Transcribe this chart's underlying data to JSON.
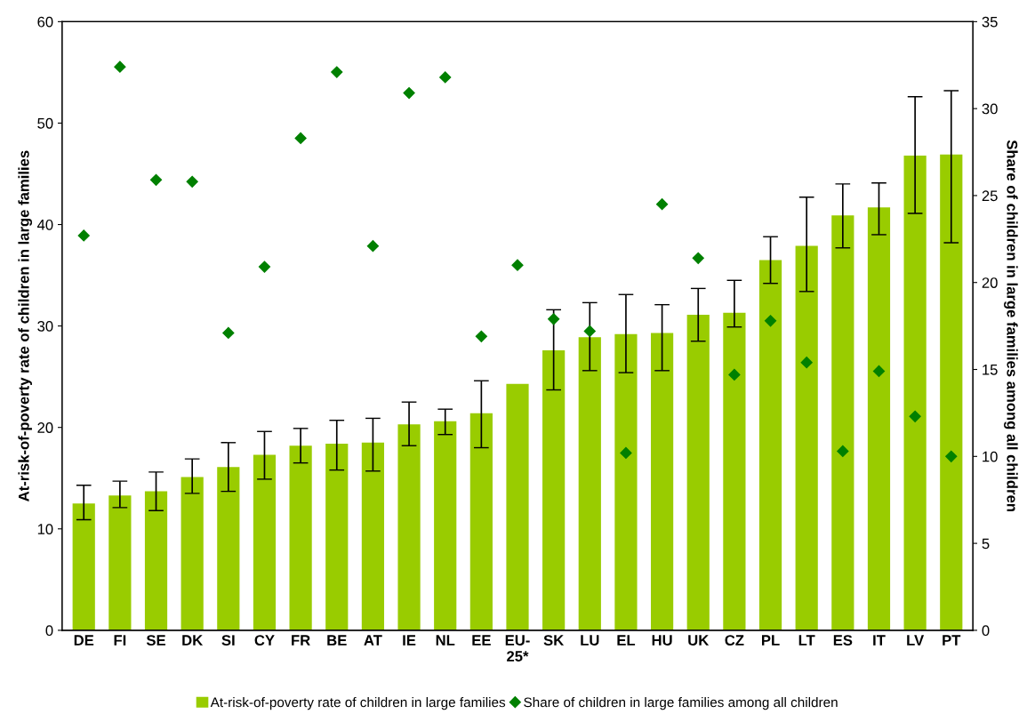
{
  "chart_data": {
    "type": "bar",
    "categories": [
      "DE",
      "FI",
      "SE",
      "DK",
      "SI",
      "CY",
      "FR",
      "BE",
      "AT",
      "IE",
      "NL",
      "EE",
      "EU-\n25*",
      "SK",
      "LU",
      "EL",
      "HU",
      "UK",
      "CZ",
      "PL",
      "LT",
      "ES",
      "IT",
      "LV",
      "PT"
    ],
    "ylabel": "At-risk-of-poverty rate of children in large families",
    "y2label": "Share of children in large families among all children",
    "ylim": [
      0,
      60
    ],
    "yticks": [
      0,
      10,
      20,
      30,
      40,
      50,
      60
    ],
    "y2lim": [
      0,
      35
    ],
    "y2ticks": [
      0,
      5,
      10,
      15,
      20,
      25,
      30,
      35
    ],
    "grid": false,
    "legend": "bottom",
    "series": [
      {
        "name": "At-risk-of-poverty rate of children in large families",
        "color": "#99cc00",
        "values": [
          12.5,
          13.3,
          13.7,
          15.1,
          16.1,
          17.3,
          18.2,
          18.4,
          18.5,
          20.3,
          20.6,
          21.4,
          24.3,
          27.6,
          28.9,
          29.2,
          29.3,
          31.1,
          31.3,
          36.5,
          37.9,
          40.9,
          41.7,
          46.8,
          46.9
        ],
        "errors": [
          [
            10.9,
            14.3
          ],
          [
            12.1,
            14.7
          ],
          [
            11.8,
            15.6
          ],
          [
            13.5,
            16.9
          ],
          [
            13.7,
            18.5
          ],
          [
            14.9,
            19.6
          ],
          [
            16.5,
            19.9
          ],
          [
            15.8,
            20.7
          ],
          [
            15.7,
            20.9
          ],
          [
            18.2,
            22.5
          ],
          [
            19.3,
            21.8
          ],
          [
            18.0,
            24.6
          ],
          null,
          [
            23.7,
            31.6
          ],
          [
            25.6,
            32.3
          ],
          [
            25.4,
            33.1
          ],
          [
            25.6,
            32.1
          ],
          [
            28.5,
            33.7
          ],
          [
            29.9,
            34.5
          ],
          [
            34.2,
            38.8
          ],
          [
            33.4,
            42.7
          ],
          [
            37.7,
            44.0
          ],
          [
            39.0,
            44.1
          ],
          [
            41.1,
            52.6
          ],
          [
            38.2,
            53.2
          ]
        ]
      },
      {
        "name": "Share of children in large families among all children",
        "type": "scatter",
        "axis": "y2",
        "marker": "diamond",
        "color": "#008000",
        "values": [
          22.7,
          32.4,
          25.9,
          25.8,
          17.1,
          20.9,
          28.3,
          32.1,
          22.1,
          30.9,
          31.8,
          16.9,
          21.0,
          17.9,
          17.2,
          10.2,
          24.5,
          21.4,
          14.7,
          17.8,
          15.4,
          10.3,
          14.9,
          12.3,
          10.0
        ]
      }
    ]
  }
}
